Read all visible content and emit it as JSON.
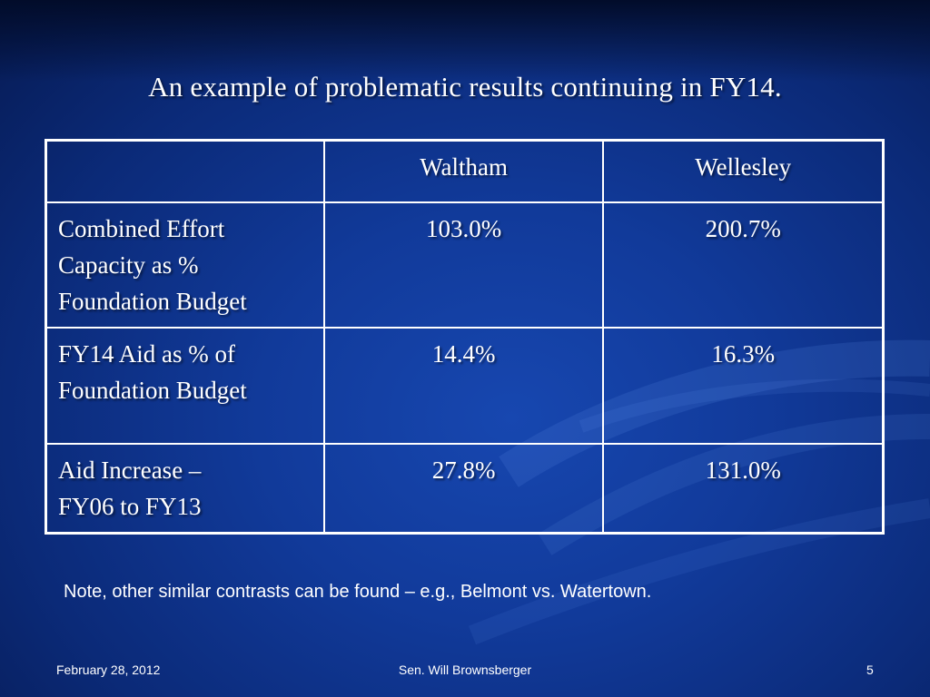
{
  "slide": {
    "title": "An example of problematic results continuing in FY14."
  },
  "table": {
    "header": {
      "blank": "",
      "col1": "Waltham",
      "col2": "Wellesley"
    },
    "rows": [
      {
        "label_lines": [
          "Combined Effort",
          "Capacity as %",
          "Foundation Budget"
        ],
        "waltham": "103.0%",
        "wellesley": "200.7%"
      },
      {
        "label_lines": [
          "FY14 Aid as % of",
          "Foundation Budget"
        ],
        "waltham": "14.4%",
        "wellesley": "16.3%"
      },
      {
        "label_lines": [
          "Aid Increase –",
          "FY06 to FY13"
        ],
        "waltham": "27.8%",
        "wellesley": "131.0%"
      }
    ]
  },
  "note": "Note, other similar contrasts can be found – e.g., Belmont vs. Watertown.",
  "footer": {
    "date": "February 28, 2012",
    "author": "Sen. Will Brownsberger",
    "page": "5"
  },
  "colors": {
    "background": "#113a9a",
    "text": "#ffffff"
  }
}
